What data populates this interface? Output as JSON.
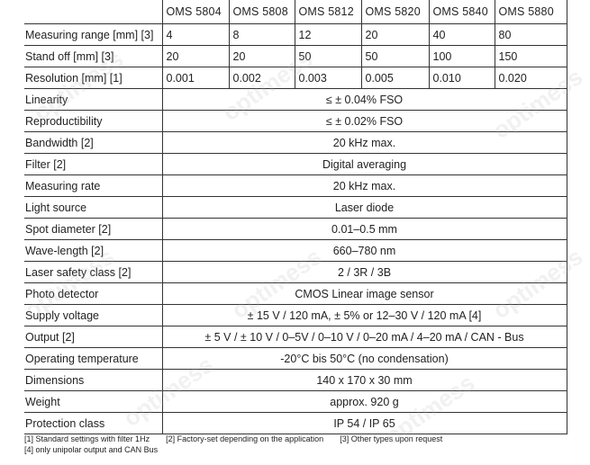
{
  "columns": [
    "OMS 5804",
    "OMS 5808",
    "OMS 5812",
    "OMS 5820",
    "OMS 5840",
    "OMS 5880"
  ],
  "per_model_rows": [
    {
      "label": "Measuring range [mm] [3]",
      "values": [
        "4",
        "8",
        "12",
        "20",
        "40",
        "80"
      ]
    },
    {
      "label": "Stand off [mm] [3]",
      "values": [
        "20",
        "20",
        "50",
        "50",
        "100",
        "150"
      ]
    },
    {
      "label": "Resolution [mm] [1]",
      "values": [
        "0.001",
        "0.002",
        "0.003",
        "0.005",
        "0.010",
        "0.020"
      ]
    }
  ],
  "common_rows": [
    {
      "label": "Linearity",
      "value": "≤ ± 0.04% FSO"
    },
    {
      "label": "Reproductibility",
      "value": "≤ ± 0.02% FSO"
    },
    {
      "label": "Bandwidth [2]",
      "value": "20 kHz max."
    },
    {
      "label": "Filter [2]",
      "value": "Digital averaging"
    },
    {
      "label": "Measuring rate",
      "value": "20 kHz max."
    },
    {
      "label": "Light source",
      "value": "Laser diode"
    },
    {
      "label": "Spot diameter [2]",
      "value": "0.01–0.5 mm"
    },
    {
      "label": "Wave-length [2]",
      "value": "660–780 nm"
    },
    {
      "label": "Laser safety class [2]",
      "value": "2 / 3R / 3B"
    },
    {
      "label": "Photo detector",
      "value": "CMOS Linear image sensor"
    },
    {
      "label": "Supply voltage",
      "value": "± 15 V / 120 mA, ± 5% or 12–30 V / 120 mA [4]"
    },
    {
      "label": "Output [2]",
      "value": "± 5 V / ± 10 V / 0–5V / 0–10 V / 0–20 mA / 4–20 mA / CAN - Bus"
    },
    {
      "label": "Operating temperature",
      "value": "-20°C bis 50°C (no condensation)"
    },
    {
      "label": "Dimensions",
      "value": "140 x 170 x 30 mm"
    },
    {
      "label": "Weight",
      "value": "approx. 920 g"
    },
    {
      "label": "Protection class",
      "value": "IP 54 / IP 65"
    }
  ],
  "footnotes": {
    "n1": "[1]  Standard settings with filter 1Hz",
    "n2": "[2]  Factory-set depending on the application",
    "n3": "[3]  Other types upon request",
    "n4": "[4]  only unipolar output and CAN Bus"
  },
  "watermark": "optimess"
}
